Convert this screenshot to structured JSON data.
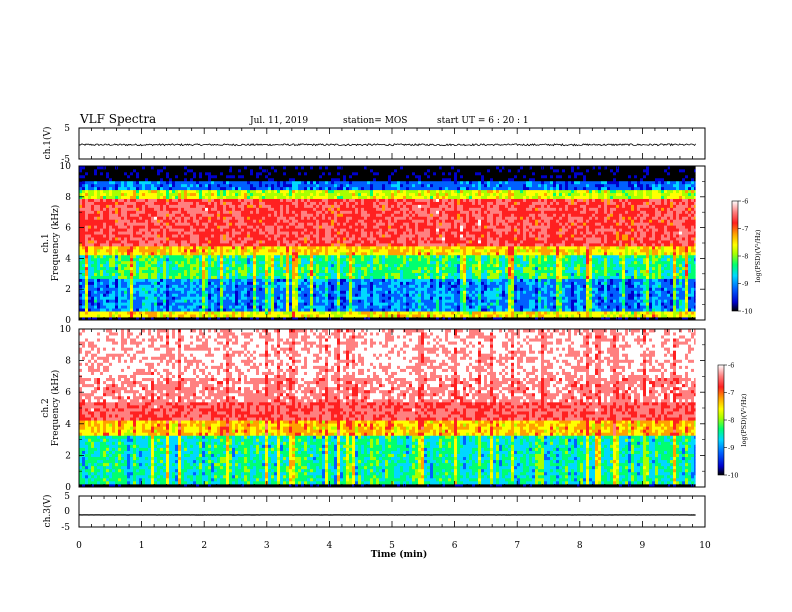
{
  "header": {
    "title": "VLF Spectra",
    "date": "Jul. 11, 2019",
    "station": "station= MOS",
    "start": "start UT =  6 : 20 : 1"
  },
  "colors": {
    "spectrum": [
      "#000000",
      "#0000cc",
      "#0060ff",
      "#00d8ff",
      "#00ff70",
      "#a8ff00",
      "#ffff00",
      "#ffa000",
      "#ff2020",
      "#ff8080",
      "#ffffff"
    ],
    "trace": "#000000"
  },
  "chart_data": [
    {
      "type": "line",
      "name": "ch1-waveform",
      "ylabel": "ch.1(V)",
      "ylim": [
        -5,
        5
      ],
      "y_ticks": [
        "5",
        "-5"
      ],
      "xlim": [
        0,
        10
      ],
      "baseline": -0.4,
      "noise_amplitude": 0.3,
      "data_extent_min": 9.85
    },
    {
      "type": "heatmap",
      "name": "ch1-spectrogram",
      "ylabel": "ch.1\nFrequency (kHz)",
      "ylabel_lines": [
        "ch.1",
        "Frequency (kHz)"
      ],
      "ylim": [
        0,
        10
      ],
      "y_ticks": [
        "0",
        "2",
        "4",
        "6",
        "8",
        "10"
      ],
      "xlim": [
        0,
        10
      ],
      "data_extent_min": 9.85,
      "colorbar": {
        "label": "log(PSD)(V²/Hz)",
        "range": [
          -10,
          -6
        ],
        "ticks": [
          "-6",
          "-7",
          "-8",
          "-9",
          "-10"
        ]
      }
    },
    {
      "type": "heatmap",
      "name": "ch2-spectrogram",
      "ylabel": "ch.2\nFrequency (kHz)",
      "ylabel_lines": [
        "ch.2",
        "Frequency (kHz)"
      ],
      "ylim": [
        0,
        10
      ],
      "y_ticks": [
        "0",
        "2",
        "4",
        "6",
        "8",
        "10"
      ],
      "xlim": [
        0,
        10
      ],
      "data_extent_min": 9.85,
      "colorbar": {
        "label": "log(PSD)(V²/Hz)",
        "range": [
          -10,
          -6
        ],
        "ticks": [
          "-6",
          "-7",
          "-8",
          "-9",
          "-10"
        ]
      }
    },
    {
      "type": "line",
      "name": "ch3-waveform",
      "ylabel": "ch.3(V)",
      "ylim": [
        -5,
        5
      ],
      "y_ticks": [
        "5",
        "0",
        "-5"
      ],
      "xlim": [
        0,
        10
      ],
      "x_ticks": [
        "0",
        "1",
        "2",
        "3",
        "4",
        "5",
        "6",
        "7",
        "8",
        "9",
        "10"
      ],
      "xlabel": "Time (min)",
      "baseline": -1.1,
      "noise_amplitude": 0.02,
      "data_extent_min": 9.85
    }
  ]
}
